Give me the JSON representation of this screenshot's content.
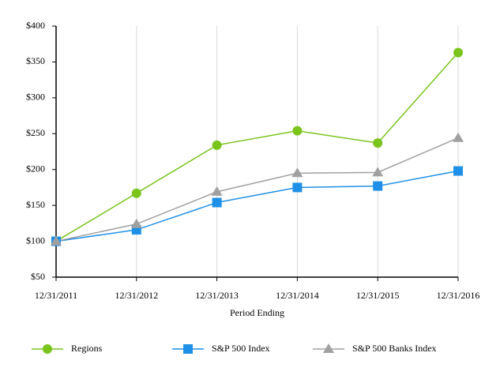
{
  "chart_data": {
    "type": "line",
    "x_label": "Period Ending",
    "categories": [
      "12/31/2011",
      "12/31/2012",
      "12/31/2013",
      "12/31/2014",
      "12/31/2015",
      "12/31/2016"
    ],
    "series": [
      {
        "name": "Regions",
        "color": "#7ac41c",
        "marker": "circle",
        "values": [
          100,
          167,
          234,
          254,
          237,
          363
        ]
      },
      {
        "name": "S&P 500 Index",
        "color": "#1e90e8",
        "marker": "square",
        "values": [
          100,
          116,
          154,
          175,
          177,
          198
        ]
      },
      {
        "name": "S&P 500 Banks Index",
        "color": "#a0a0a0",
        "marker": "triangle",
        "values": [
          100,
          124,
          169,
          195,
          196,
          244
        ]
      }
    ],
    "ylim": [
      50,
      400
    ],
    "yticks": [
      {
        "value": 50,
        "label": "$50"
      },
      {
        "value": 100,
        "label": "$100"
      },
      {
        "value": 150,
        "label": "$150"
      },
      {
        "value": 200,
        "label": "$200"
      },
      {
        "value": 250,
        "label": "$250"
      },
      {
        "value": 300,
        "label": "$300"
      },
      {
        "value": 350,
        "label": "$350"
      },
      {
        "value": 400,
        "label": "$400"
      }
    ],
    "grid": true,
    "legend": "bottom"
  }
}
